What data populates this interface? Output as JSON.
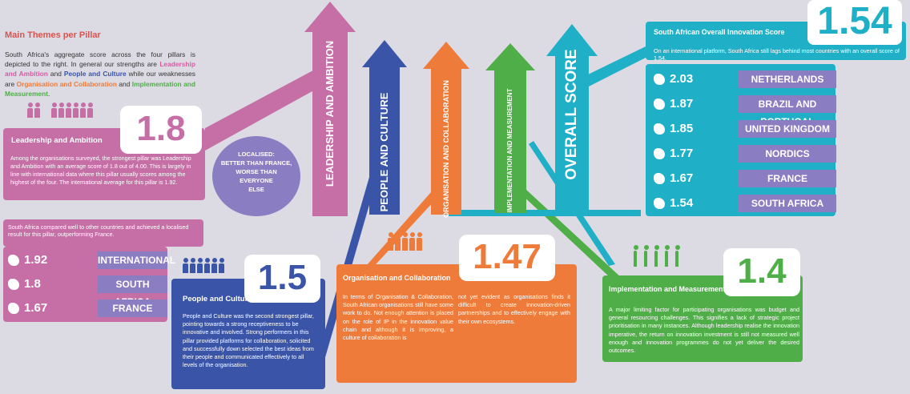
{
  "header": {
    "title": "Main Themes per Pillar",
    "intro_a": "South Africa's aggregate score across the four pillars is depicted to the right. In general our strengths are ",
    "strength1": "Leadership and Ambition",
    "intro_and1": " and ",
    "strength2": "People and Culture",
    "intro_b": " while our weaknesses are ",
    "weak1": "Organisation and Collaboration",
    "intro_and2": " and ",
    "weak2": "Implementation and Measurement",
    "intro_end": "."
  },
  "colors": {
    "pink": "#c56fa6",
    "blue": "#3a55a8",
    "orange": "#ef7b3a",
    "green": "#4fae48",
    "teal": "#1fb0c8",
    "purple": "#8a7dc2"
  },
  "pillars": {
    "leadership": {
      "label": "LEADERSHIP AND AMBITION",
      "title": "Leadership and Ambition",
      "score": "1.8",
      "text": "Among the organisations surveyed, the strongest pillar was Leadership and Ambition with an average score of 1.8 out of 4.00. This is largely in line with international data where this pillar usually scores among the highest of the four. The international average for this pillar is 1.92.",
      "comparison": "South Africa compared well to other countries and achieved a localised result for this pillar, outperforming France.",
      "localised": [
        "LOCALISED:",
        "BETTER THAN FRANCE,",
        "WORSE THAN",
        "EVERYONE",
        "ELSE"
      ],
      "ranking": [
        {
          "value": "1.92",
          "name": "INTERNATIONAL",
          "icon": "globe-icon"
        },
        {
          "value": "1.8",
          "name": "SOUTH AFRICA",
          "icon": "south-africa-map-icon"
        },
        {
          "value": "1.67",
          "name": "FRANCE",
          "icon": "france-map-icon"
        }
      ]
    },
    "people": {
      "label": "PEOPLE AND CULTURE",
      "title": "People and Culture",
      "score": "1.5",
      "text": "People and Culture was the second strongest pillar, pointing towards a strong receptiveness to be innovative and involved. Strong performers in this pillar provided platforms for collaboration, solicited and successfully down selected the best ideas from their people and communicated effectively to all levels of the organisation."
    },
    "organisation": {
      "label": "ORGANISATION AND COLLABORATION",
      "title": "Organisation and Collaboration",
      "score": "1.47",
      "text1": "In terms of Organisation & Collaboration, South African organisations still have some work to do. Not enough attention is placed on the role of IP in the innovation value chain and although it is improving, a culture of collaboration is",
      "text2": "not yet evident as organisations finds it difficult to create innovation-driven partnerships and to effectively engage with their own ecosystems."
    },
    "implementation": {
      "label": "IMPLEMENTATION AND MEASUREMENT",
      "title": "Implementation and Measurement",
      "score": "1.4",
      "text": "A major limiting factor for participating organisations was budget and general resourcing challenges. This signifies a lack of strategic project prioritisation in many instances. Although leadership realise the innovation imperative, the return on innovation investment is still not measured well enough and innovation programmes do not yet deliver the desired outcomes."
    },
    "overall": {
      "label": "OVERALL SCORE"
    }
  },
  "overall_panel": {
    "title": "South African Overall Innovation Score",
    "score": "1.54",
    "text": "On an international platform, South Africa still lags behind most countries with an overall score of 1.54.",
    "ranking": [
      {
        "value": "2.03",
        "name": "NETHERLANDS",
        "icon": "netherlands-map-icon"
      },
      {
        "value": "1.87",
        "name": "BRAZIL AND PORTUGAL",
        "icon": "brazil-portugal-map-icon"
      },
      {
        "value": "1.85",
        "name": "UNITED KINGDOM",
        "icon": "uk-map-icon"
      },
      {
        "value": "1.77",
        "name": "NORDICS",
        "icon": "nordics-map-icon"
      },
      {
        "value": "1.67",
        "name": "FRANCE",
        "icon": "france-map-icon"
      },
      {
        "value": "1.54",
        "name": "SOUTH AFRICA",
        "icon": "south-africa-map-icon"
      }
    ]
  }
}
